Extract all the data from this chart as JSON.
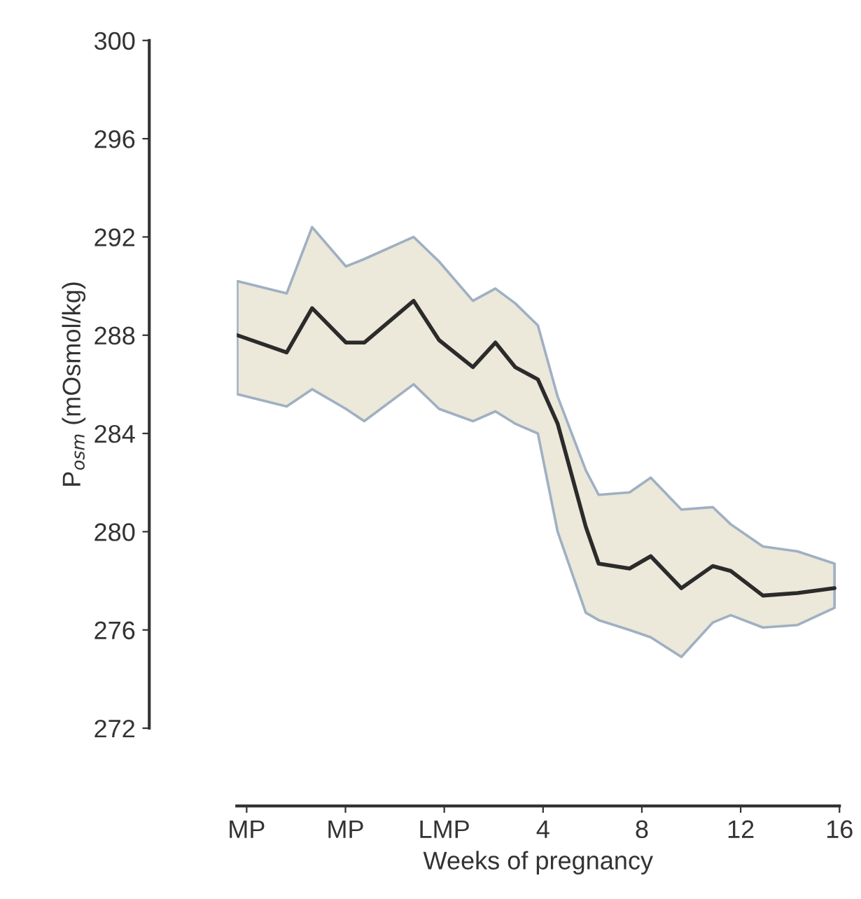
{
  "chart_data": {
    "type": "line",
    "xlabel": "Weeks of pregnancy",
    "ylabel": "P$_{osm}$ (mOsmol/kg)",
    "xlim": [
      -8.4,
      16
    ],
    "xticks": [
      {
        "value": -8,
        "label": "MP"
      },
      {
        "value": -4,
        "label": "MP"
      },
      {
        "value": 0,
        "label": "LMP"
      },
      4,
      8,
      12,
      16
    ],
    "ylim": [
      272,
      300
    ],
    "yticks": [
      272,
      276,
      280,
      284,
      288,
      292,
      296,
      300
    ],
    "grid": false,
    "marker": "none",
    "line_style": "solid",
    "series": [
      {
        "color": "#2b2b2b",
        "x": [
          -8.38,
          -6.38,
          -5.35,
          -3.98,
          -3.24,
          -1.24,
          -0.21,
          1.16,
          2.07,
          2.87,
          3.79,
          4.59,
          5.73,
          6.25,
          7.5,
          8.36,
          9.6,
          10.87,
          11.6,
          12.9,
          14.3,
          15.8
        ],
        "values": [
          288.0,
          287.3,
          289.1,
          287.7,
          287.7,
          289.4,
          287.8,
          286.7,
          287.7,
          286.7,
          286.2,
          284.4,
          280.2,
          278.7,
          278.5,
          279.0,
          277.7,
          278.6,
          278.4,
          277.4,
          277.5,
          277.7
        ],
        "upper": [
          290.2,
          289.7,
          292.4,
          290.8,
          291.1,
          292.0,
          291.0,
          289.4,
          289.9,
          289.3,
          288.4,
          285.5,
          282.5,
          281.5,
          281.6,
          282.2,
          280.9,
          281.0,
          280.3,
          279.4,
          279.2,
          278.7
        ],
        "lower": [
          285.6,
          285.1,
          285.8,
          285.0,
          284.5,
          286.0,
          285.0,
          284.5,
          284.9,
          284.4,
          284.0,
          280.0,
          276.7,
          276.4,
          276.0,
          275.7,
          274.9,
          276.3,
          276.6,
          276.1,
          276.2,
          276.9
        ]
      }
    ]
  }
}
